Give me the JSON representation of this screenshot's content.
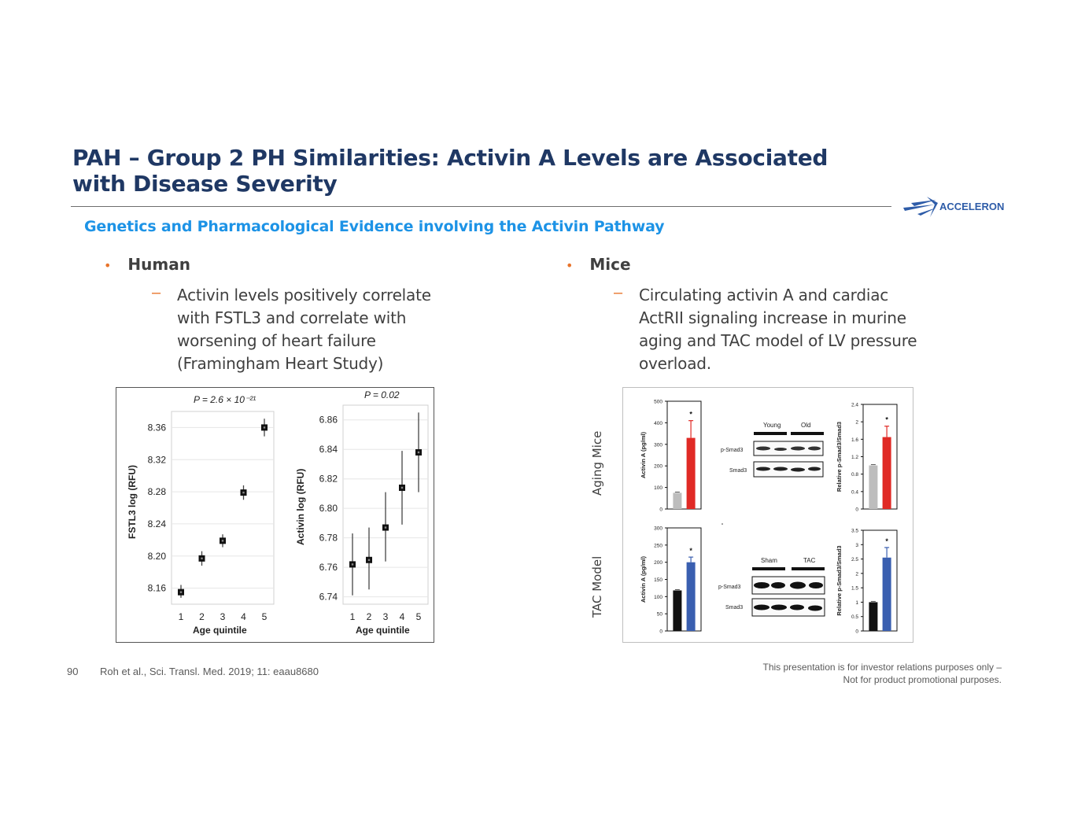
{
  "title": "PAH – Group 2 PH Similarities: Activin A Levels are Associated with Disease Severity",
  "brand": {
    "name": "ACCELERON",
    "color": "#2e5ca8"
  },
  "subtitle": "Genetics and Pharmacological Evidence involving the Activin Pathway",
  "left": {
    "bullet": "Human",
    "sub": "Activin levels positively correlate with FSTL3 and correlate with worsening of heart failure (Framingham Heart Study)"
  },
  "right": {
    "bullet": "Mice",
    "sub": "Circulating activin A and cardiac ActRII signaling increase in murine aging and TAC model of LV pressure overload."
  },
  "human_figure": {
    "fstl3": {
      "p_label": "P = 2.6 × 10⁻²¹",
      "ylabel": "FSTL3 log (RFU)",
      "xlabel": "Age quintile"
    },
    "activin": {
      "p_label": "P = 0.02",
      "ylabel": "Activin log (RFU)",
      "xlabel": "Age quintile"
    }
  },
  "mice_figure": {
    "row_labels": [
      "Aging Mice",
      "TAC Model"
    ],
    "aging_blot": {
      "group1": "Young",
      "group2": "Old",
      "band1": "p-Smad3",
      "band2": "Smad3"
    },
    "tac_blot": {
      "group1": "Sham",
      "group2": "TAC",
      "band1": "p-Smad3",
      "band2": "Smad3"
    },
    "activin_ylabel": "Activin A (pg/ml)",
    "smad_ylabel": "Relative p-Smad3/Smad3",
    "sig_mark": "*"
  },
  "chart_data": [
    {
      "type": "scatter",
      "title": "P = 2.6 × 10⁻²¹",
      "xlabel": "Age quintile",
      "ylabel": "FSTL3 log (RFU)",
      "x": [
        1,
        2,
        3,
        4,
        5
      ],
      "y": [
        8.155,
        8.197,
        8.219,
        8.279,
        8.36
      ],
      "err_low": [
        8.148,
        8.188,
        8.211,
        8.27,
        8.349
      ],
      "err_high": [
        8.164,
        8.206,
        8.227,
        8.288,
        8.371
      ],
      "ylim": [
        8.14,
        8.38
      ],
      "yticks": [
        8.16,
        8.2,
        8.24,
        8.28,
        8.32,
        8.36
      ]
    },
    {
      "type": "scatter",
      "title": "P = 0.02",
      "xlabel": "Age quintile",
      "ylabel": "Activin log (RFU)",
      "x": [
        1,
        2,
        3,
        4,
        5
      ],
      "y": [
        6.762,
        6.765,
        6.787,
        6.814,
        6.838
      ],
      "err_low": [
        6.741,
        6.745,
        6.764,
        6.789,
        6.811
      ],
      "err_high": [
        6.783,
        6.787,
        6.811,
        6.839,
        6.865
      ],
      "ylim": [
        6.735,
        6.87
      ],
      "yticks": [
        6.74,
        6.76,
        6.78,
        6.8,
        6.82,
        6.84,
        6.86
      ]
    },
    {
      "type": "bar",
      "ylabel": "Activin A (pg/ml)",
      "categories": [
        "Young",
        "Old"
      ],
      "values": [
        75,
        330
      ],
      "ylim": [
        0,
        500
      ],
      "yticks": [
        0,
        100,
        200,
        300,
        400,
        500
      ],
      "colors": [
        "#bdbdbd",
        "#e02a25"
      ]
    },
    {
      "type": "bar",
      "ylabel": "Relative p-Smad3/Smad3",
      "categories": [
        "Young",
        "Old"
      ],
      "values": [
        1.0,
        1.65
      ],
      "ylim": [
        0,
        2.4
      ],
      "yticks": [
        0,
        0.4,
        0.8,
        1.2,
        1.6,
        2,
        2.4
      ],
      "colors": [
        "#bdbdbd",
        "#e02a25"
      ]
    },
    {
      "type": "bar",
      "ylabel": "Activin A (pg/ml)",
      "categories": [
        "Sham",
        "TAC"
      ],
      "values": [
        118,
        200
      ],
      "ylim": [
        0,
        300
      ],
      "yticks": [
        0,
        50,
        100,
        150,
        200,
        250,
        300
      ],
      "colors": [
        "#111111",
        "#3a5fb0"
      ]
    },
    {
      "type": "bar",
      "ylabel": "Relative p-Smad3/Smad3",
      "categories": [
        "Sham",
        "TAC"
      ],
      "values": [
        1.0,
        2.55
      ],
      "ylim": [
        0,
        3.5
      ],
      "yticks": [
        0,
        0.5,
        1,
        1.5,
        2,
        2.5,
        3,
        3.5
      ],
      "colors": [
        "#111111",
        "#3a5fb0"
      ]
    }
  ],
  "footer": {
    "page_number": "90",
    "citation": "Roh et al., Sci. Transl. Med. 2019; 11: eaau8680",
    "disclaimer_line1": "This presentation is for investor relations purposes only –",
    "disclaimer_line2": "Not for product promotional purposes."
  }
}
